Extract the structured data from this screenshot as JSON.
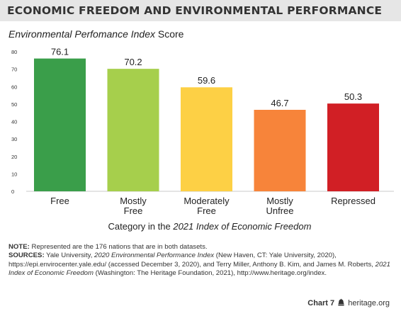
{
  "header": {
    "title": "ECONOMIC FREEDOM AND ENVIRONMENTAL PERFORMANCE"
  },
  "chart_data": {
    "type": "bar",
    "title": "ECONOMIC FREEDOM AND ENVIRONMENTAL PERFORMANCE",
    "ylabel_italic": "Environmental Perfomance Index",
    "ylabel_plain": "Score",
    "xlabel_plain": "Category in the",
    "xlabel_italic": "2021 Index of Economic Freedom",
    "ylim": [
      0,
      80
    ],
    "yticks": [
      0,
      10,
      20,
      30,
      40,
      50,
      60,
      70,
      80
    ],
    "grid": false,
    "categories": [
      [
        "Free"
      ],
      [
        "Mostly",
        "Free"
      ],
      [
        "Moderately",
        "Free"
      ],
      [
        "Mostly",
        "Unfree"
      ],
      [
        "Repressed"
      ]
    ],
    "values": [
      76.1,
      70.2,
      59.6,
      46.7,
      50.3
    ],
    "value_labels": [
      "76.1",
      "70.2",
      "59.6",
      "46.7",
      "50.3"
    ],
    "colors": [
      "#3a9e4a",
      "#a6cf4c",
      "#fdd045",
      "#f7843a",
      "#d11f25"
    ]
  },
  "notes": {
    "note_label": "NOTE:",
    "note_text": " Represented are the 176 nations that are in both datasets.",
    "sources_label": "SOURCES:",
    "src1": " Yale University, ",
    "src1_italic": "2020 Environmental Performance Index",
    "src2": " (New Haven, CT: Yale University, 2020), https://epi.envirocenter.yale.edu/ (accessed December 3, 2020), and Terry Miller, Anthony B. Kim, and James M. Roberts, ",
    "src2_italic": "2021 Index of Economic Freedom",
    "src3": " (Washington: The Heritage Foundation, 2021), http://www.heritage.org/index."
  },
  "footer": {
    "chart_label": "Chart 7",
    "logo_icon": "bell-icon",
    "site": "heritage.org"
  }
}
